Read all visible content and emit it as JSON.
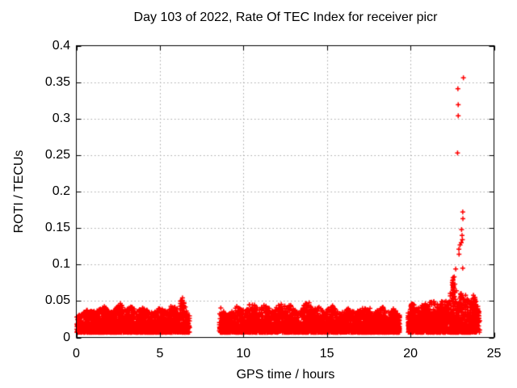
{
  "chart_data": {
    "type": "scatter",
    "title": "Day 103 of 2022, Rate Of TEC Index for receiver picr",
    "xlabel": "GPS time / hours",
    "ylabel": "ROTI / TECUs",
    "xlim": [
      0,
      25
    ],
    "ylim": [
      0,
      0.4
    ],
    "x_ticks": [
      0,
      5,
      10,
      15,
      20,
      25
    ],
    "y_ticks": [
      0,
      0.05,
      0.1,
      0.15,
      0.2,
      0.25,
      0.3,
      0.35,
      0.4
    ],
    "y_tick_labels": [
      "0",
      "0.05",
      "0.1",
      "0.15",
      "0.2",
      "0.25",
      "0.3",
      "0.35",
      "0.4"
    ],
    "grid": {
      "show": true,
      "style": "dotted",
      "color": "#a8a8a8",
      "legend": "none"
    },
    "marker": {
      "shape": "plus",
      "color": "#ff0000",
      "size": 7
    },
    "series_name": "ROTI",
    "seed": 1303,
    "bands": [
      {
        "x0": 0.02,
        "x1": 6.78,
        "n": 1600,
        "y_min": 0.007,
        "env_base": 0.03,
        "shape": 2.1,
        "humps": [
          {
            "c": 0.7,
            "w": 0.25,
            "a": 0.008
          },
          {
            "c": 1.6,
            "w": 0.3,
            "a": 0.012
          },
          {
            "c": 2.6,
            "w": 0.25,
            "a": 0.016
          },
          {
            "c": 3.3,
            "w": 0.2,
            "a": 0.012
          },
          {
            "c": 4.0,
            "w": 0.25,
            "a": 0.011
          },
          {
            "c": 5.0,
            "w": 0.3,
            "a": 0.01
          },
          {
            "c": 5.8,
            "w": 0.2,
            "a": 0.014
          },
          {
            "c": 6.35,
            "w": 0.18,
            "a": 0.023
          }
        ]
      },
      {
        "x0": 8.56,
        "x1": 19.36,
        "n": 2400,
        "y_min": 0.007,
        "env_base": 0.03,
        "shape": 2.1,
        "humps": [
          {
            "c": 8.68,
            "w": 0.15,
            "a": 0.015
          },
          {
            "c": 9.6,
            "w": 0.25,
            "a": 0.013
          },
          {
            "c": 10.5,
            "w": 0.3,
            "a": 0.017
          },
          {
            "c": 11.3,
            "w": 0.25,
            "a": 0.013
          },
          {
            "c": 12.2,
            "w": 0.3,
            "a": 0.017
          },
          {
            "c": 12.9,
            "w": 0.2,
            "a": 0.014
          },
          {
            "c": 13.8,
            "w": 0.25,
            "a": 0.019
          },
          {
            "c": 14.5,
            "w": 0.2,
            "a": 0.012
          },
          {
            "c": 15.3,
            "w": 0.25,
            "a": 0.013
          },
          {
            "c": 16.2,
            "w": 0.3,
            "a": 0.009
          },
          {
            "c": 17.2,
            "w": 0.3,
            "a": 0.01
          },
          {
            "c": 18.3,
            "w": 0.3,
            "a": 0.011
          },
          {
            "c": 19.0,
            "w": 0.15,
            "a": 0.008
          }
        ]
      },
      {
        "x0": 19.85,
        "x1": 24.15,
        "n": 1050,
        "y_min": 0.007,
        "env_base": 0.032,
        "shape": 2.0,
        "humps": [
          {
            "c": 20.12,
            "w": 0.12,
            "a": 0.015
          },
          {
            "c": 20.7,
            "w": 0.25,
            "a": 0.012
          },
          {
            "c": 21.3,
            "w": 0.25,
            "a": 0.017
          },
          {
            "c": 22.0,
            "w": 0.25,
            "a": 0.021
          },
          {
            "c": 22.55,
            "w": 0.15,
            "a": 0.044
          },
          {
            "c": 23.05,
            "w": 0.12,
            "a": 0.026
          },
          {
            "c": 23.35,
            "w": 0.15,
            "a": 0.018
          },
          {
            "c": 23.8,
            "w": 0.2,
            "a": 0.024
          }
        ]
      }
    ],
    "columns": [
      {
        "x": 22.55,
        "y0": 0.03,
        "y1": 0.082,
        "n": 14,
        "jitter": 0.06
      },
      {
        "x": 23.05,
        "y0": 0.03,
        "y1": 0.06,
        "n": 8,
        "jitter": 0.05
      },
      {
        "x": 20.12,
        "y0": 0.012,
        "y1": 0.046,
        "n": 9,
        "jitter": 0.04
      }
    ],
    "spike_points": [
      [
        23.17,
        0.356
      ],
      [
        22.84,
        0.341
      ],
      [
        22.86,
        0.319
      ],
      [
        22.86,
        0.304
      ],
      [
        22.82,
        0.253
      ],
      [
        23.13,
        0.172
      ],
      [
        23.14,
        0.163
      ],
      [
        23.06,
        0.148
      ],
      [
        23.09,
        0.14
      ],
      [
        23.11,
        0.134
      ],
      [
        23.04,
        0.13
      ],
      [
        22.97,
        0.127
      ],
      [
        22.9,
        0.121
      ],
      [
        22.91,
        0.114
      ],
      [
        22.71,
        0.094
      ],
      [
        23.13,
        0.095
      ],
      [
        22.62,
        0.083
      ],
      [
        22.56,
        0.079
      ],
      [
        22.66,
        0.073
      ],
      [
        22.6,
        0.068
      ],
      [
        22.75,
        0.064
      ],
      [
        23.0,
        0.06
      ],
      [
        23.3,
        0.058
      ],
      [
        23.77,
        0.058
      ]
    ],
    "outlier_points": [
      [
        17.58,
        0.04
      ]
    ]
  }
}
